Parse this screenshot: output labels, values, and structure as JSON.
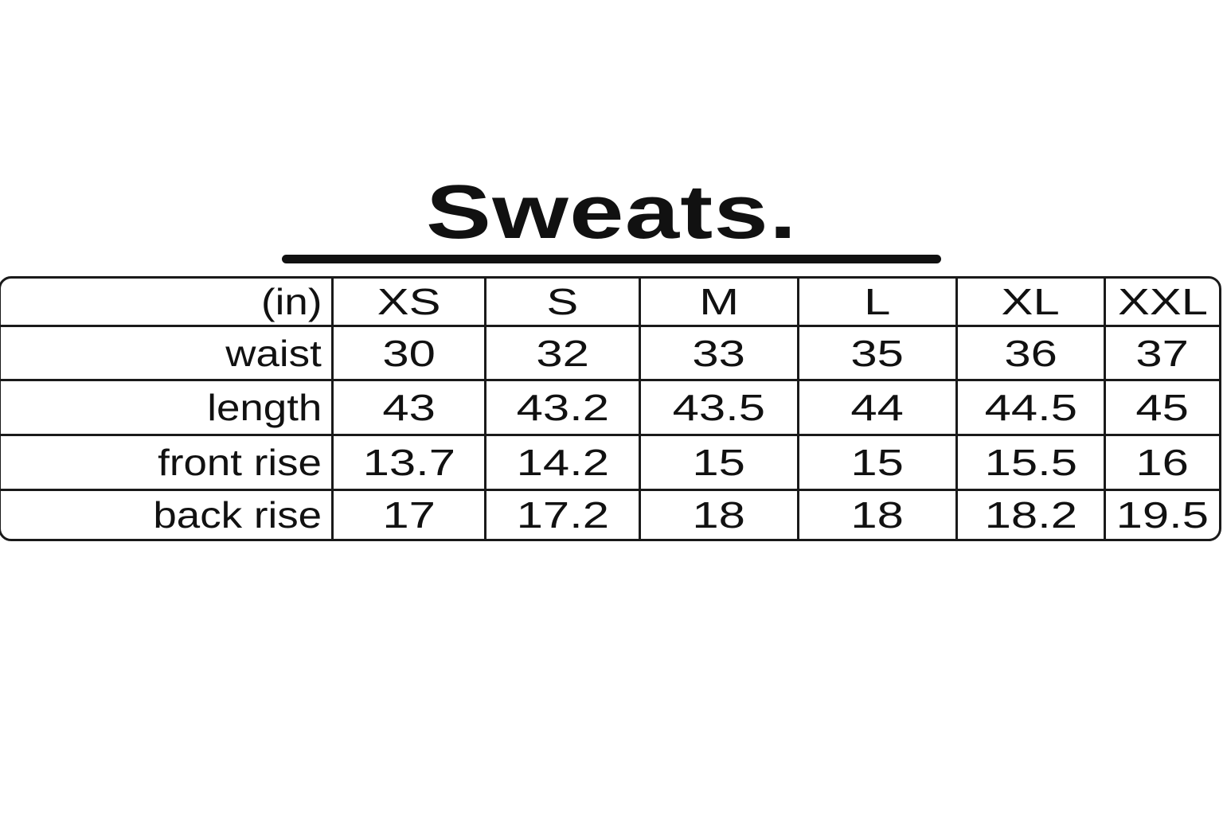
{
  "title": "Sweats.",
  "table": {
    "unit_label": "(in)",
    "sizes": [
      "XS",
      "S",
      "M",
      "L",
      "XL",
      "XXL"
    ],
    "rows": [
      {
        "label": "waist",
        "values": [
          "30",
          "32",
          "33",
          "35",
          "36",
          "37"
        ]
      },
      {
        "label": "length",
        "values": [
          "43",
          "43.2",
          "43.5",
          "44",
          "44.5",
          "45"
        ]
      },
      {
        "label": "front rise",
        "values": [
          "13.7",
          "14.2",
          "15",
          "15",
          "15.5",
          "16"
        ]
      },
      {
        "label": "back rise",
        "values": [
          "17",
          "17.2",
          "18",
          "18",
          "18.2",
          "19.5"
        ]
      }
    ]
  }
}
